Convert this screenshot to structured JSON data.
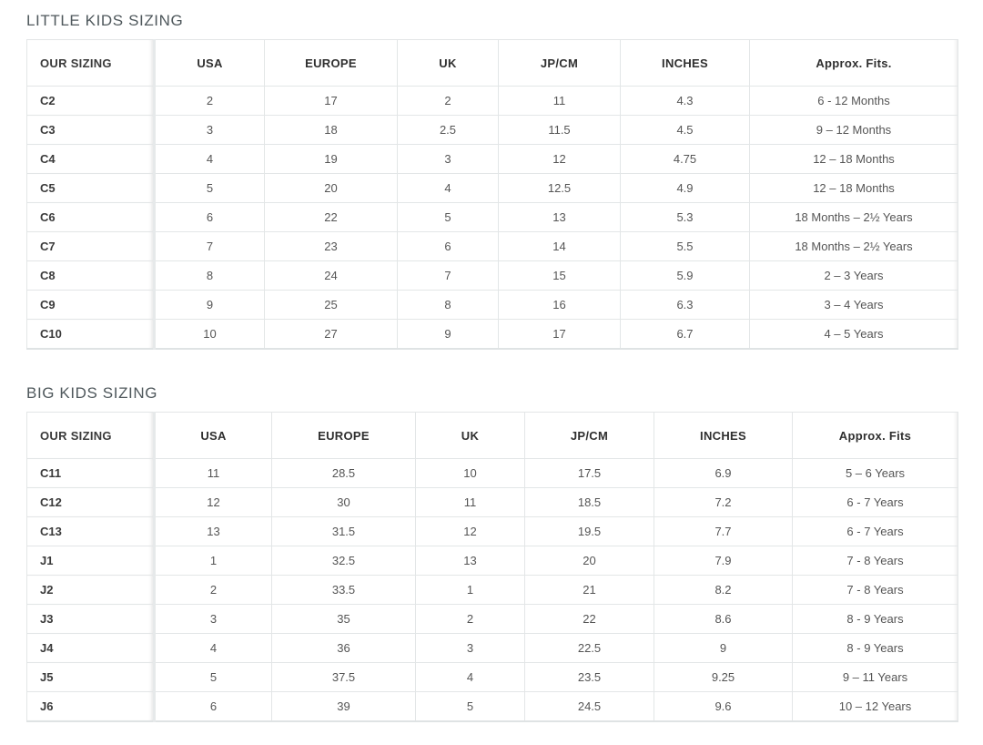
{
  "little_kids": {
    "title": "LITTLE KIDS SIZING",
    "headers": [
      "OUR SIZING",
      "USA",
      "EUROPE",
      "UK",
      "JP/CM",
      "INCHES",
      "Approx. Fits."
    ],
    "rows": [
      [
        "C2",
        "2",
        "17",
        "2",
        "11",
        "4.3",
        "6 - 12 Months"
      ],
      [
        "C3",
        "3",
        "18",
        "2.5",
        "11.5",
        "4.5",
        "9 – 12 Months"
      ],
      [
        "C4",
        "4",
        "19",
        "3",
        "12",
        "4.75",
        "12 – 18 Months"
      ],
      [
        "C5",
        "5",
        "20",
        "4",
        "12.5",
        "4.9",
        "12 – 18 Months"
      ],
      [
        "C6",
        "6",
        "22",
        "5",
        "13",
        "5.3",
        "18 Months – 2½ Years"
      ],
      [
        "C7",
        "7",
        "23",
        "6",
        "14",
        "5.5",
        "18 Months – 2½ Years"
      ],
      [
        "C8",
        "8",
        "24",
        "7",
        "15",
        "5.9",
        "2 – 3 Years"
      ],
      [
        "C9",
        "9",
        "25",
        "8",
        "16",
        "6.3",
        "3 – 4 Years"
      ],
      [
        "C10",
        "10",
        "27",
        "9",
        "17",
        "6.7",
        "4 – 5 Years"
      ]
    ]
  },
  "big_kids": {
    "title": "BIG KIDS SIZING",
    "headers": [
      "OUR SIZING",
      "USA",
      "EUROPE",
      "UK",
      "JP/CM",
      "INCHES",
      "Approx. Fits"
    ],
    "rows": [
      [
        "C11",
        "11",
        "28.5",
        "10",
        "17.5",
        "6.9",
        "5 – 6 Years"
      ],
      [
        "C12",
        "12",
        "30",
        "11",
        "18.5",
        "7.2",
        "6 - 7 Years"
      ],
      [
        "C13",
        "13",
        "31.5",
        "12",
        "19.5",
        "7.7",
        "6 - 7 Years"
      ],
      [
        "J1",
        "1",
        "32.5",
        "13",
        "20",
        "7.9",
        "7 - 8 Years"
      ],
      [
        "J2",
        "2",
        "33.5",
        "1",
        "21",
        "8.2",
        "7 - 8 Years"
      ],
      [
        "J3",
        "3",
        "35",
        "2",
        "22",
        "8.6",
        "8 - 9 Years"
      ],
      [
        "J4",
        "4",
        "36",
        "3",
        "22.5",
        "9",
        "8 - 9 Years"
      ],
      [
        "J5",
        "5",
        "37.5",
        "4",
        "23.5",
        "9.25",
        "9 – 11 Years"
      ],
      [
        "J6",
        "6",
        "39",
        "5",
        "24.5",
        "9.6",
        "10 – 12 Years"
      ]
    ]
  }
}
